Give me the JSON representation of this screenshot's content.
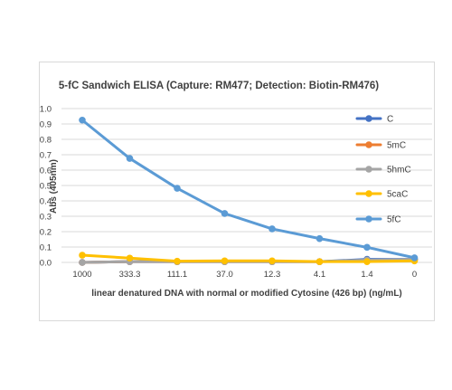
{
  "chart_data": {
    "type": "line",
    "title": "5-fC Sandwich ELISA (Capture: RM477; Detection: Biotin-RM476)",
    "xlabel": "linear denatured DNA with normal or modified Cytosine (426 bp) (ng/mL)",
    "ylabel": "Abs (405nm)",
    "categories": [
      "1000",
      "333.3",
      "111.1",
      "37.0",
      "12.3",
      "4.1",
      "1.4",
      "0"
    ],
    "ylim": [
      0,
      1.0
    ],
    "yticks": [
      "0.0",
      "0.1",
      "0.2",
      "0.3",
      "0.4",
      "0.5",
      "0.6",
      "0.7",
      "0.8",
      "0.9",
      "1.0"
    ],
    "grid": true,
    "legend": "right",
    "series": [
      {
        "name": "C",
        "color": "#4472c4",
        "values": [
          0.0,
          0.005,
          0.005,
          0.005,
          0.005,
          0.005,
          0.02,
          0.02
        ]
      },
      {
        "name": "5mC",
        "color": "#ed7d31",
        "values": [
          0.0,
          0.005,
          0.005,
          0.005,
          0.005,
          0.005,
          0.01,
          0.02
        ]
      },
      {
        "name": "5hmC",
        "color": "#a5a5a5",
        "values": [
          0.0,
          0.005,
          0.005,
          0.005,
          0.005,
          0.005,
          0.015,
          0.02
        ]
      },
      {
        "name": "5caC",
        "color": "#ffc000",
        "values": [
          0.047,
          0.028,
          0.008,
          0.01,
          0.01,
          0.005,
          0.005,
          0.01
        ]
      },
      {
        "name": "5fC",
        "color": "#5b9bd5",
        "values": [
          0.925,
          0.676,
          0.482,
          0.318,
          0.218,
          0.155,
          0.098,
          0.03
        ]
      }
    ]
  }
}
